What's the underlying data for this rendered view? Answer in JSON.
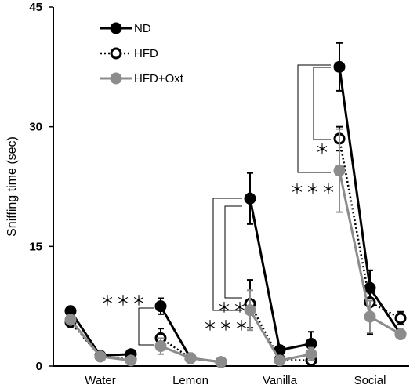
{
  "chart_data": {
    "type": "line",
    "ylabel": "Sniffing time (sec)",
    "ylim": [
      0,
      45
    ],
    "yticks": [
      "0",
      "15",
      "30",
      "45"
    ],
    "categories": [
      "Water",
      "Lemon",
      "Vanilla",
      "Social"
    ],
    "trials_per_category": 3,
    "legend_placement": "top-left",
    "grid": false,
    "series": [
      {
        "name": "ND",
        "color": "#000000",
        "marker": "filled-circle",
        "line": "solid",
        "values": [
          [
            6.9,
            1.3,
            1.5
          ],
          [
            7.5,
            1.0,
            0.5
          ],
          [
            21.0,
            2.0,
            2.8
          ],
          [
            37.5,
            9.8,
            4.0
          ]
        ],
        "errors": [
          [
            0.5,
            0.3,
            0.4
          ],
          [
            1.0,
            0.3,
            0.2
          ],
          [
            3.2,
            0.5,
            1.5
          ],
          [
            3.0,
            2.2,
            0.5
          ]
        ]
      },
      {
        "name": "HFD",
        "color": "#000000",
        "marker": "open-circle",
        "line": "dotted",
        "values": [
          [
            5.5,
            1.2,
            0.8
          ],
          [
            3.5,
            1.0,
            0.5
          ],
          [
            7.8,
            0.8,
            0.7
          ],
          [
            28.5,
            8.0,
            6.0
          ]
        ],
        "errors": [
          [
            0.5,
            0.3,
            0.3
          ],
          [
            1.2,
            0.3,
            0.2
          ],
          [
            3.0,
            0.4,
            0.3
          ],
          [
            1.5,
            4.0,
            0.8
          ]
        ]
      },
      {
        "name": "HFD+Oxt",
        "color": "#8c8c8c",
        "marker": "filled-circle",
        "line": "solid",
        "values": [
          [
            5.8,
            1.2,
            0.7
          ],
          [
            2.5,
            1.0,
            0.5
          ],
          [
            7.0,
            0.7,
            1.5
          ],
          [
            24.5,
            6.2,
            4.0
          ]
        ],
        "errors": [
          [
            0.5,
            0.3,
            0.3
          ],
          [
            1.0,
            0.3,
            0.2
          ],
          [
            2.5,
            0.4,
            0.8
          ],
          [
            5.2,
            2.0,
            0.5
          ]
        ]
      }
    ],
    "annotations": [
      {
        "category": "Lemon",
        "text": "＊＊＊"
      },
      {
        "category": "Vanilla",
        "text": "＊＊"
      },
      {
        "category": "Vanilla",
        "text": "＊＊＊"
      },
      {
        "category": "Social",
        "text": "＊"
      },
      {
        "category": "Social",
        "text": "＊＊＊"
      }
    ]
  }
}
